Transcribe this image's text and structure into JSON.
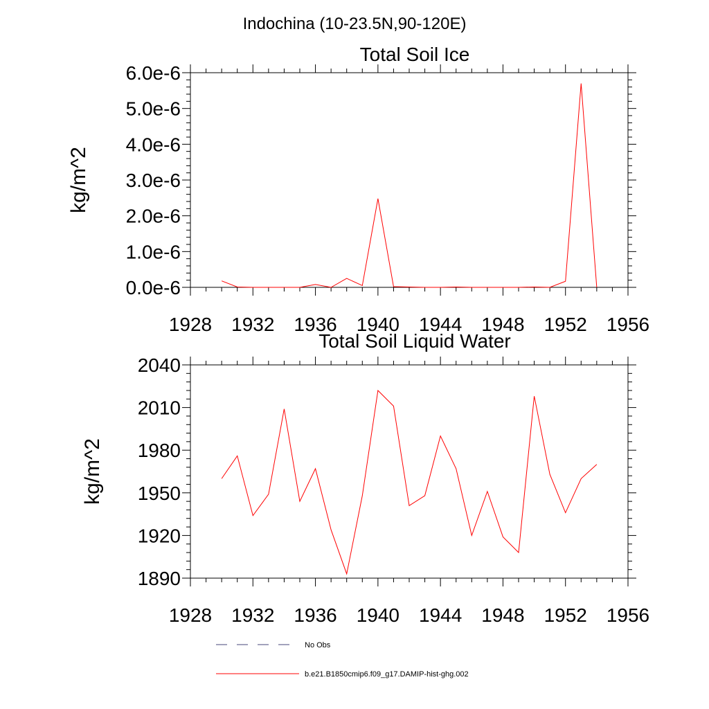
{
  "page_title": "Indochina (10-23.5N,90-120E)",
  "legend": {
    "items": [
      {
        "label": "No Obs",
        "style": "dashed",
        "color": "#44447a"
      },
      {
        "label": "b.e21.B1850cmip6.f09_g17.DAMIP-hist-ghg.002",
        "style": "solid",
        "color": "#ff0000"
      }
    ]
  },
  "chart_data": [
    {
      "type": "line",
      "title": "Total Soil Ice",
      "ylabel": "kg/m^2",
      "xlabel": "",
      "xlim": [
        1928,
        1956
      ],
      "ylim": [
        0,
        6e-06
      ],
      "xticks": [
        1928,
        1932,
        1936,
        1940,
        1944,
        1948,
        1952,
        1956
      ],
      "yticks": [
        0,
        1e-06,
        2e-06,
        3e-06,
        4e-06,
        5e-06,
        6e-06
      ],
      "ytick_labels": [
        "0.0e-6",
        "1.0e-6",
        "2.0e-6",
        "3.0e-6",
        "4.0e-6",
        "5.0e-6",
        "6.0e-6"
      ],
      "grid": false,
      "series": [
        {
          "name": "b.e21.B1850cmip6.f09_g17.DAMIP-hist-ghg.002",
          "color": "#ff0000",
          "x": [
            1930,
            1931,
            1932,
            1933,
            1934,
            1935,
            1936,
            1937,
            1938,
            1939,
            1940,
            1941,
            1942,
            1943,
            1944,
            1945,
            1946,
            1947,
            1948,
            1949,
            1950,
            1951,
            1952,
            1953,
            1954
          ],
          "y": [
            1.8e-07,
            1e-08,
            0,
            0,
            0,
            0,
            8e-08,
            0,
            2.5e-07,
            5e-08,
            2.48e-06,
            2e-08,
            1e-08,
            0,
            0,
            1e-08,
            0,
            0,
            0,
            0,
            1e-08,
            0,
            1.7e-07,
            5.7e-06,
            0
          ]
        }
      ]
    },
    {
      "type": "line",
      "title": "Total Soil Liquid Water",
      "ylabel": "kg/m^2",
      "xlabel": "",
      "xlim": [
        1928,
        1956
      ],
      "ylim": [
        1890,
        2040
      ],
      "xticks": [
        1928,
        1932,
        1936,
        1940,
        1944,
        1948,
        1952,
        1956
      ],
      "yticks": [
        1890,
        1920,
        1950,
        1980,
        2010,
        2040
      ],
      "ytick_labels": [
        "1890",
        "1920",
        "1950",
        "1980",
        "2010",
        "2040"
      ],
      "grid": false,
      "series": [
        {
          "name": "b.e21.B1850cmip6.f09_g17.DAMIP-hist-ghg.002",
          "color": "#ff0000",
          "x": [
            1930,
            1931,
            1932,
            1933,
            1934,
            1935,
            1936,
            1937,
            1938,
            1939,
            1940,
            1941,
            1942,
            1943,
            1944,
            1945,
            1946,
            1947,
            1948,
            1949,
            1950,
            1951,
            1952,
            1953,
            1954
          ],
          "y": [
            1960,
            1976,
            1934,
            1949,
            2009,
            1944,
            1967,
            1924,
            1893,
            1948,
            2022,
            2011,
            1941,
            1948,
            1990,
            1967,
            1920,
            1951,
            1919,
            1908,
            2018,
            1963,
            1936,
            1960,
            1970
          ]
        }
      ]
    }
  ]
}
